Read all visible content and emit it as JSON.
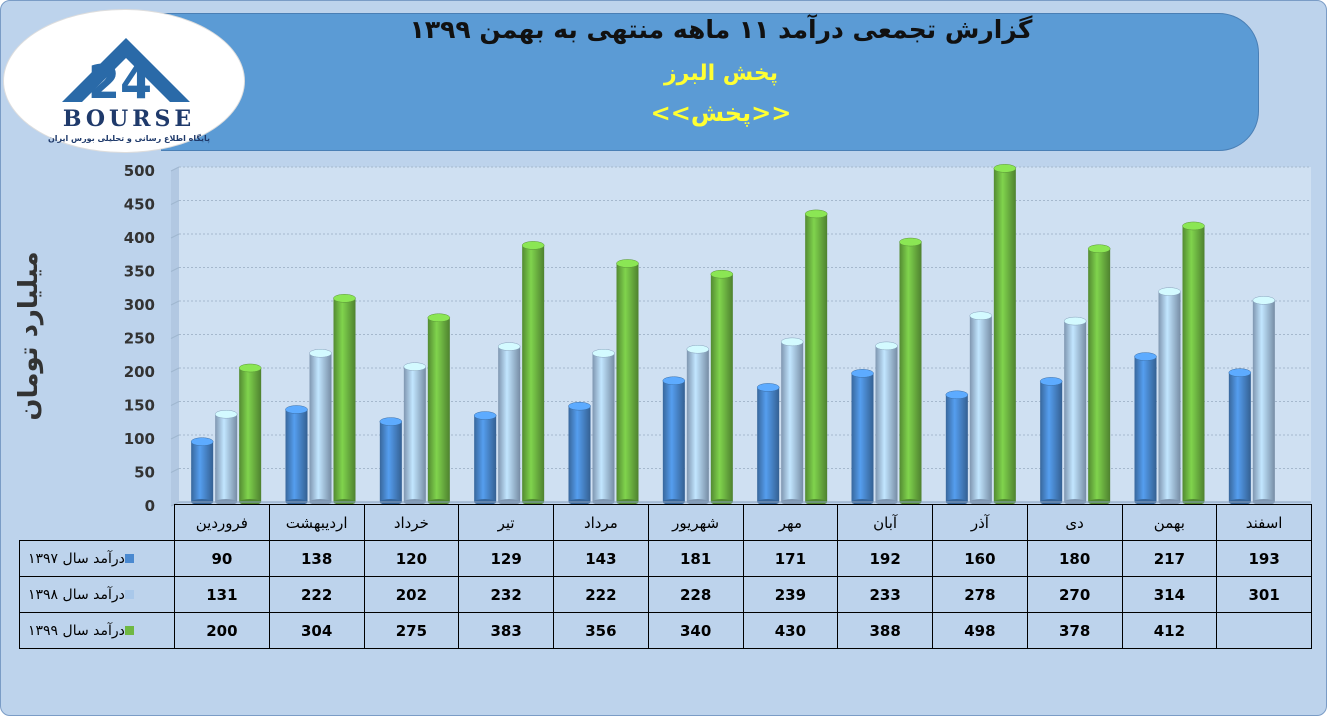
{
  "header": {
    "title": "گزارش تجمعی درآمد ۱۱ ماهه منتهی به بهمن ۱۳۹۹",
    "company": "پخش البرز",
    "symbol": "<<پخش>>"
  },
  "logo": {
    "word": "BOURSE",
    "number": "24",
    "subtitle": "پایگاه اطلاع رسانی و تحلیلی بورس ایران"
  },
  "colors": {
    "header_bg": "#5b9bd5",
    "page_bg": "#bdd3ec",
    "title_yellow": "#ffff33",
    "series_1397": "#4a89d0",
    "series_1398": "#a9c8ea",
    "series_1399": "#6fb843"
  },
  "chart_data": {
    "type": "bar",
    "ylabel": "میلیارد تومان",
    "ylim": [
      0,
      500
    ],
    "yticks": [
      0,
      50,
      100,
      150,
      200,
      250,
      300,
      350,
      400,
      450,
      500
    ],
    "grid": true,
    "categories": [
      "فروردین",
      "اردیبهشت",
      "خرداد",
      "تیر",
      "مرداد",
      "شهریور",
      "مهر",
      "آبان",
      "آذر",
      "دی",
      "بهمن",
      "اسفند"
    ],
    "series": [
      {
        "name": "درآمد سال ۱۳۹۷",
        "color": "#4a89d0",
        "values": [
          90,
          138,
          120,
          129,
          143,
          181,
          171,
          192,
          160,
          180,
          217,
          193
        ]
      },
      {
        "name": "درآمد سال ۱۳۹۸",
        "color": "#a9c8ea",
        "values": [
          131,
          222,
          202,
          232,
          222,
          228,
          239,
          233,
          278,
          270,
          314,
          301
        ]
      },
      {
        "name": "درآمد سال ۱۳۹۹",
        "color": "#6fb843",
        "values": [
          200,
          304,
          275,
          383,
          356,
          340,
          430,
          388,
          498,
          378,
          412,
          null
        ]
      }
    ]
  }
}
